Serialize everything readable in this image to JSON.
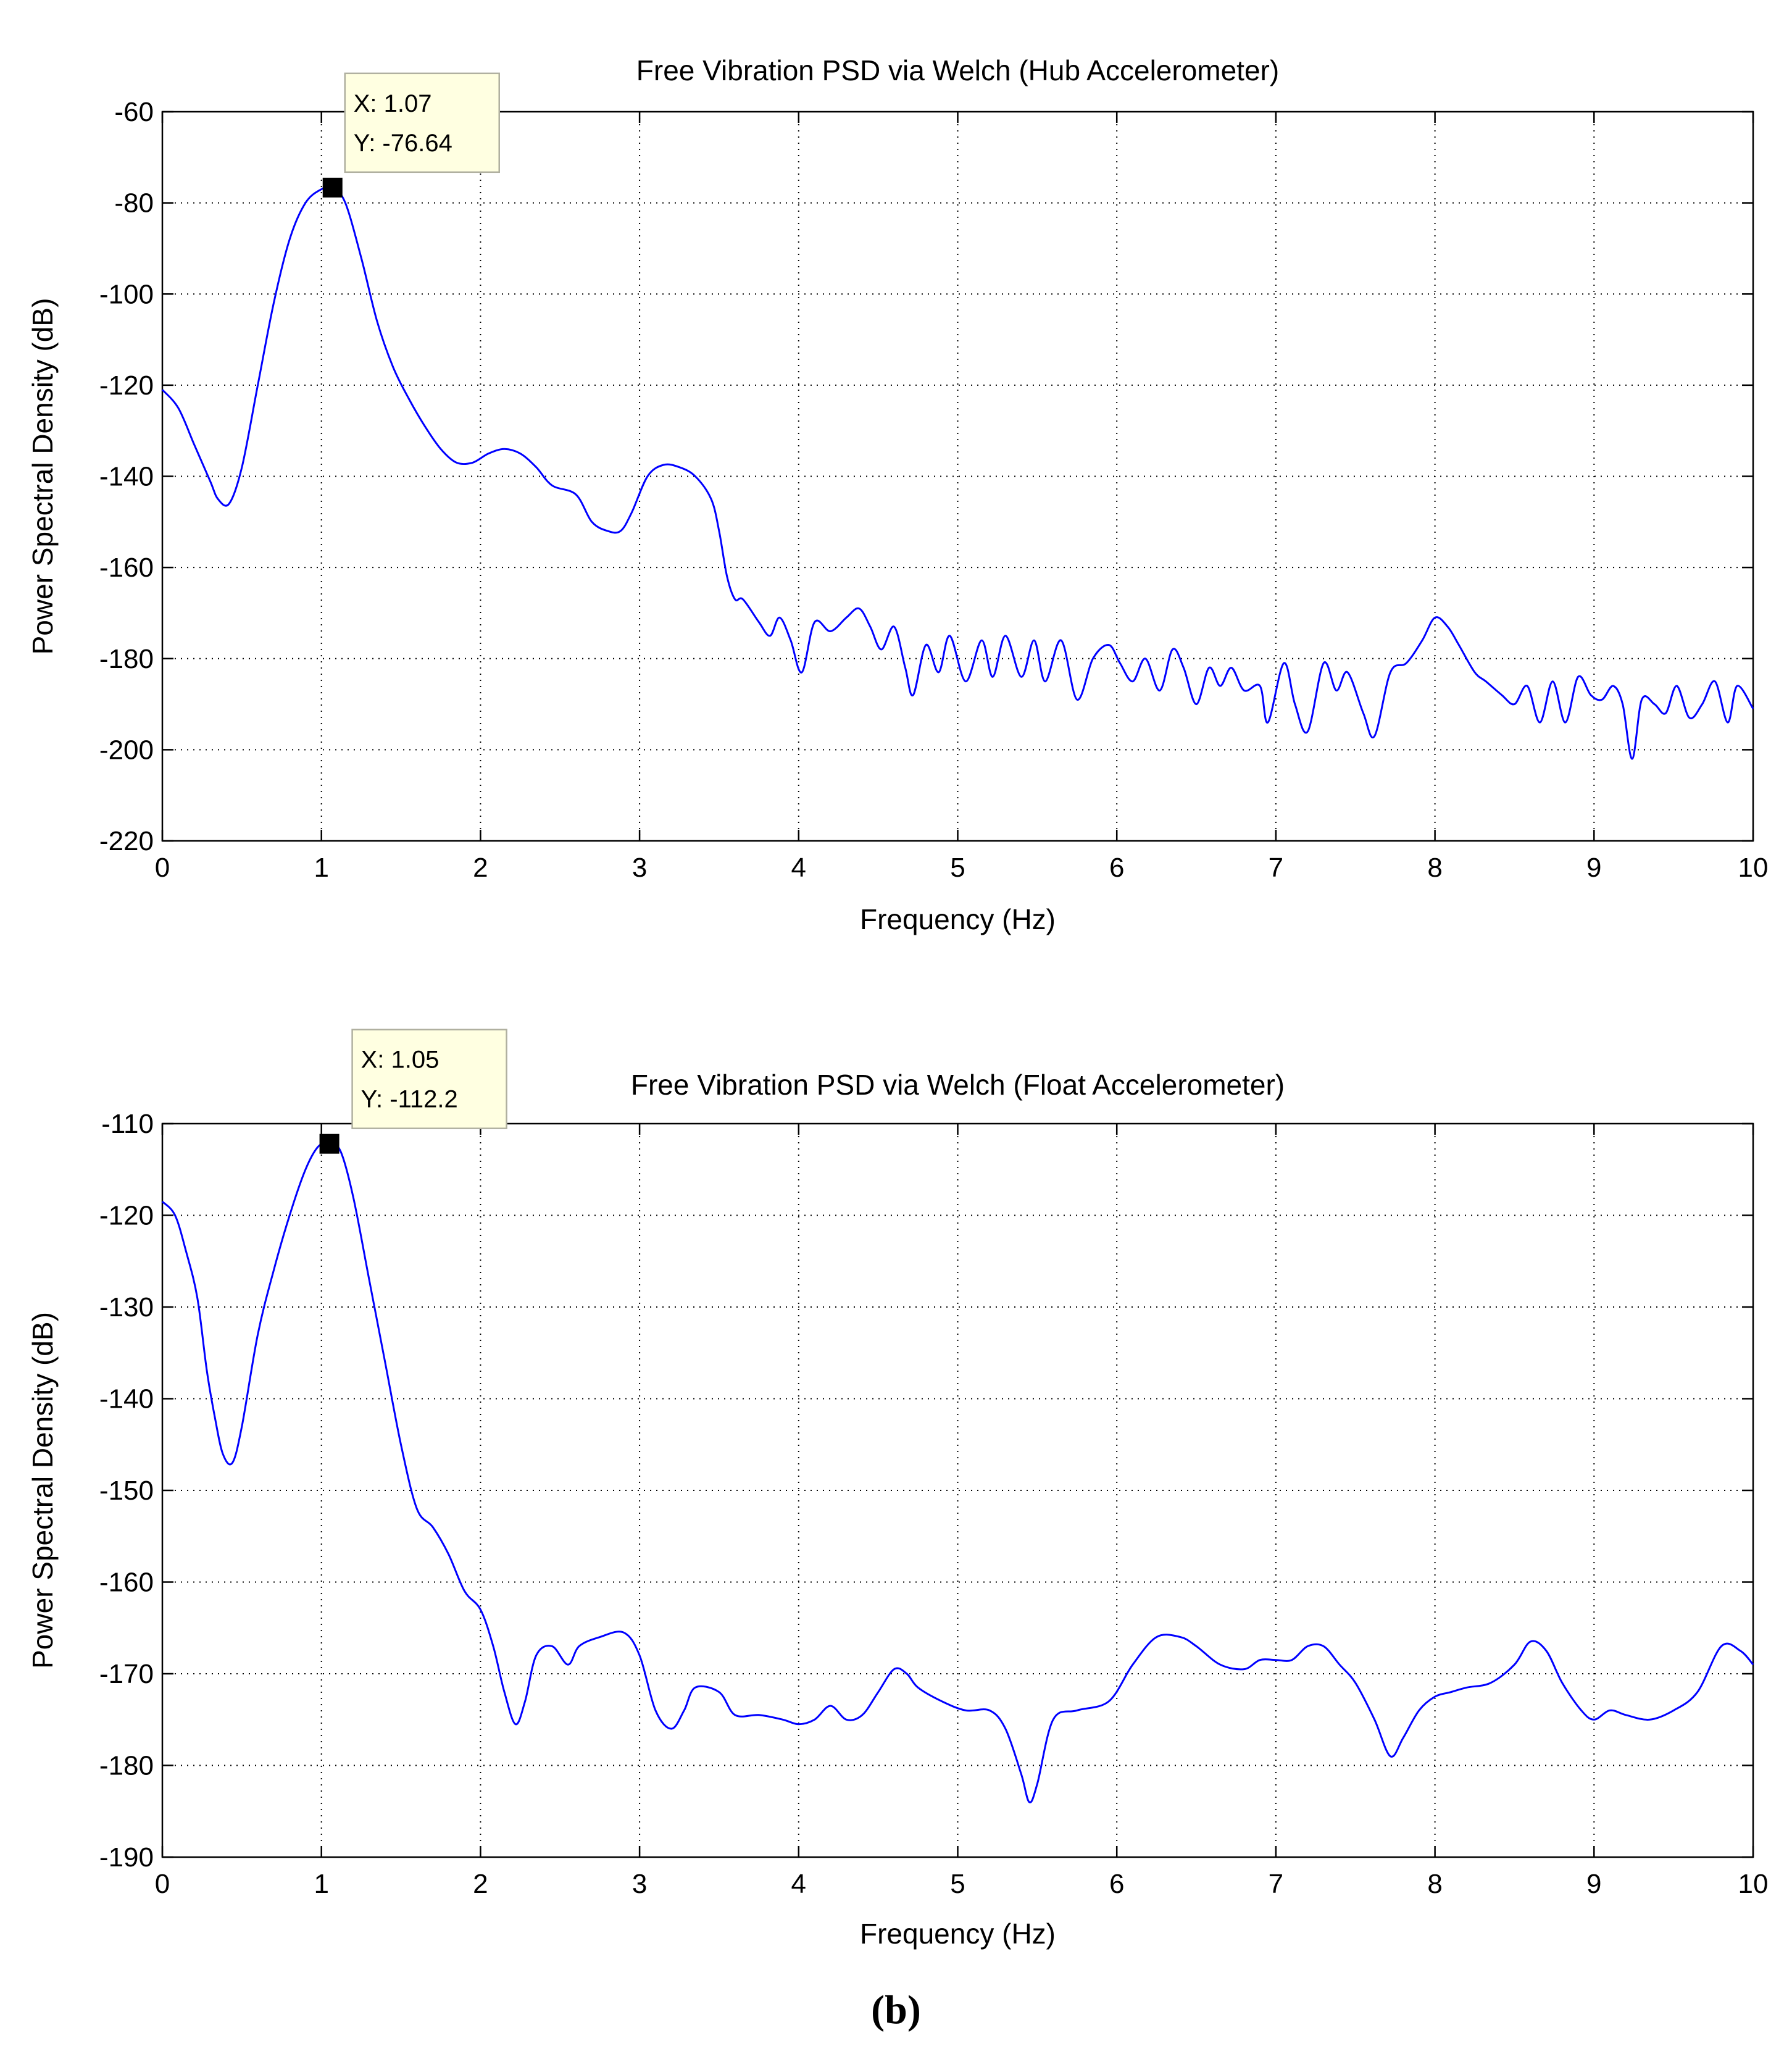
{
  "figure": {
    "caption": "(b)"
  },
  "chart_data": [
    {
      "type": "line",
      "title": "Free Vibration PSD via Welch (Hub Accelerometer)",
      "xlabel": "Frequency (Hz)",
      "ylabel": "Power Spectral Density (dB)",
      "xlim": [
        0,
        10
      ],
      "ylim": [
        -220,
        -60
      ],
      "xticks": [
        "0",
        "1",
        "2",
        "3",
        "4",
        "5",
        "6",
        "7",
        "8",
        "9",
        "10"
      ],
      "yticks": [
        "-60",
        "-80",
        "-100",
        "-120",
        "-140",
        "-160",
        "-180",
        "-200",
        "-220"
      ],
      "grid": true,
      "line_color": "#0000ff",
      "series": [
        {
          "x": [
            0,
            0.1,
            0.2,
            0.3,
            0.35,
            0.42,
            0.5,
            0.6,
            0.7,
            0.8,
            0.9,
            1.0,
            1.07,
            1.15,
            1.25,
            1.35,
            1.45,
            1.55,
            1.65,
            1.75,
            1.85,
            1.95,
            2.05,
            2.15,
            2.25,
            2.35,
            2.45,
            2.6,
            2.7,
            2.8,
            2.88,
            2.95,
            3.05,
            3.15,
            3.25,
            3.35,
            3.45,
            3.5,
            3.55,
            3.6,
            3.65,
            3.75,
            3.82,
            3.88,
            3.95,
            4.02,
            4.1,
            4.2,
            4.3,
            4.38,
            4.45,
            4.52,
            4.6,
            4.67,
            4.72,
            4.8,
            4.88,
            4.95,
            5.05,
            5.15,
            5.22,
            5.3,
            5.4,
            5.48,
            5.55,
            5.65,
            5.75,
            5.85,
            5.95,
            6.02,
            6.1,
            6.18,
            6.27,
            6.35,
            6.42,
            6.5,
            6.58,
            6.65,
            6.72,
            6.8,
            6.9,
            6.95,
            7.05,
            7.12,
            7.2,
            7.3,
            7.38,
            7.45,
            7.55,
            7.62,
            7.72,
            7.82,
            7.92,
            8.0,
            8.08,
            8.15,
            8.25,
            8.32,
            8.42,
            8.5,
            8.58,
            8.66,
            8.74,
            8.82,
            8.9,
            8.98,
            9.05,
            9.12,
            9.18,
            9.24,
            9.3,
            9.38,
            9.45,
            9.52,
            9.6,
            9.68,
            9.76,
            9.84,
            9.9,
            10.0
          ],
          "y": [
            -121,
            -125,
            -133,
            -141,
            -145,
            -146,
            -138,
            -120,
            -102,
            -88,
            -80,
            -77,
            -76.64,
            -80,
            -92,
            -106,
            -116,
            -123,
            -129,
            -134,
            -137,
            -137,
            -135,
            -134,
            -135,
            -138,
            -142,
            -144,
            -150,
            -152,
            -152,
            -148,
            -140,
            -137.5,
            -138,
            -140,
            -145,
            -152,
            -162,
            -167,
            -167,
            -172,
            -175,
            -171,
            -176,
            -183,
            -172,
            -174,
            -171,
            -169,
            -173,
            -178,
            -173,
            -182,
            -188,
            -177,
            -183,
            -175,
            -185,
            -176,
            -184,
            -175,
            -184,
            -176,
            -185,
            -176,
            -189,
            -180,
            -177,
            -181,
            -185,
            -180,
            -187,
            -178,
            -182,
            -190,
            -182,
            -186,
            -182,
            -187,
            -186,
            -194,
            -181,
            -190,
            -196,
            -181,
            -187,
            -183,
            -192,
            -197,
            -183,
            -181,
            -176,
            -171,
            -173,
            -177,
            -183,
            -185,
            -188,
            -190,
            -186,
            -194,
            -185,
            -194,
            -184,
            -188,
            -189,
            -186,
            -190,
            -202,
            -189,
            -190,
            -192,
            -186,
            -193,
            -190,
            -185,
            -194,
            -186,
            -191
          ]
        }
      ],
      "annotation": {
        "x": 1.07,
        "y": -76.64,
        "label_x": "X: 1.07",
        "label_y": "Y: -76.64"
      }
    },
    {
      "type": "line",
      "title": "Free Vibration PSD via Welch (Float Accelerometer)",
      "xlabel": "Frequency (Hz)",
      "ylabel": "Power Spectral Density (dB)",
      "xlim": [
        0,
        10
      ],
      "ylim": [
        -190,
        -110
      ],
      "xticks": [
        "0",
        "1",
        "2",
        "3",
        "4",
        "5",
        "6",
        "7",
        "8",
        "9",
        "10"
      ],
      "yticks": [
        "-110",
        "-120",
        "-130",
        "-140",
        "-150",
        "-160",
        "-170",
        "-180",
        "-190"
      ],
      "grid": true,
      "line_color": "#0000ff",
      "series": [
        {
          "x": [
            0,
            0.08,
            0.15,
            0.22,
            0.28,
            0.33,
            0.38,
            0.44,
            0.5,
            0.6,
            0.7,
            0.8,
            0.9,
            0.98,
            1.05,
            1.12,
            1.2,
            1.3,
            1.4,
            1.5,
            1.6,
            1.7,
            1.8,
            1.9,
            2.0,
            2.08,
            2.15,
            2.22,
            2.28,
            2.35,
            2.45,
            2.55,
            2.62,
            2.75,
            2.9,
            3.0,
            3.1,
            3.2,
            3.28,
            3.35,
            3.5,
            3.6,
            3.75,
            3.9,
            4.0,
            4.1,
            4.2,
            4.3,
            4.4,
            4.5,
            4.6,
            4.68,
            4.75,
            4.9,
            5.05,
            5.2,
            5.3,
            5.4,
            5.45,
            5.5,
            5.6,
            5.75,
            5.95,
            6.1,
            6.25,
            6.4,
            6.5,
            6.65,
            6.8,
            6.9,
            7.0,
            7.1,
            7.2,
            7.3,
            7.4,
            7.5,
            7.62,
            7.72,
            7.8,
            7.9,
            8.0,
            8.1,
            8.2,
            8.35,
            8.5,
            8.6,
            8.7,
            8.8,
            8.92,
            9.0,
            9.1,
            9.2,
            9.35,
            9.5,
            9.65,
            9.8,
            9.92,
            10.0
          ],
          "y": [
            -118.5,
            -120,
            -124,
            -129,
            -137,
            -142,
            -146,
            -147,
            -143,
            -133,
            -126,
            -120,
            -115,
            -112.5,
            -112.2,
            -113,
            -118,
            -127,
            -136,
            -145,
            -152,
            -154,
            -157,
            -161,
            -163,
            -167,
            -172,
            -175.5,
            -173,
            -168,
            -167,
            -169,
            -167,
            -166,
            -165.5,
            -168,
            -174,
            -176,
            -174,
            -171.5,
            -172,
            -174.5,
            -174.5,
            -175,
            -175.5,
            -175,
            -173.5,
            -175,
            -174.5,
            -172,
            -169.5,
            -170,
            -171.5,
            -173,
            -174,
            -174,
            -176,
            -181,
            -184,
            -182,
            -175,
            -174,
            -173,
            -169,
            -166,
            -166,
            -167,
            -169,
            -169.5,
            -168.5,
            -168.5,
            -168.5,
            -167,
            -167,
            -169,
            -171,
            -175,
            -179,
            -177,
            -174,
            -172.5,
            -172,
            -171.5,
            -171,
            -169,
            -166.5,
            -167.5,
            -171,
            -174,
            -175,
            -174,
            -174.5,
            -175,
            -174,
            -172,
            -167,
            -167.5,
            -169
          ]
        }
      ],
      "annotation": {
        "x": 1.05,
        "y": -112.2,
        "label_x": "X: 1.05",
        "label_y": "Y: -112.2"
      }
    }
  ]
}
